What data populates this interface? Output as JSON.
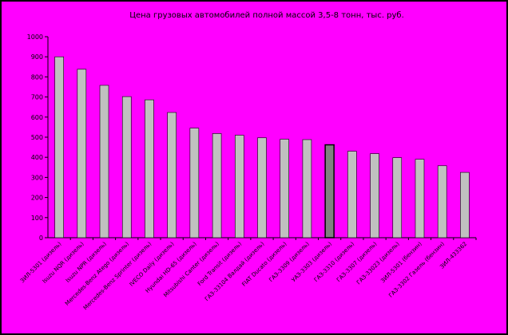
{
  "chart_data": {
    "type": "bar",
    "title": "Цена грузовых автомобилей полной массой 3,5-8 тонн, тыс. руб.",
    "xlabel": "",
    "ylabel": "",
    "ylim": [
      0,
      1000
    ],
    "yticks": [
      0,
      100,
      200,
      300,
      400,
      500,
      600,
      700,
      800,
      900,
      1000
    ],
    "grid": false,
    "legend": "none",
    "categories": [
      "ЗИЛ-5301 (дизель)",
      "Isuzu NQR (дизель)",
      "Isuzu NPR (дизель)",
      "Mercedes-Benz Atego (дизель)",
      "Mercedes-Benz Sprinter (дизель)",
      "IVECO Daily (дизель)",
      "Hyundai HD-65 (дизель)",
      "Mitsubishi Canter (дизель)",
      "Ford Transit (дизель)",
      "ГАЗ-33104 Валдай (дизель)",
      "FIAT Ducato (дизель)",
      "ГАЗ-3309 (дизель)",
      "УАЗ-3303 (дизель)",
      "ГАЗ-3310 (дизель)",
      "ГАЗ-3307 (дизель)",
      "ГАЗ-33023 (дизель)",
      "ЗИЛ-5301 (бензин)",
      "ГАЗ-3302 Газель (бензин)",
      "ЗИЛ-433362"
    ],
    "values": [
      900,
      838,
      758,
      702,
      686,
      623,
      545,
      518,
      510,
      497,
      490,
      488,
      462,
      430,
      418,
      398,
      390,
      358,
      325
    ],
    "highlight_index": 12,
    "colors": {
      "background": "#ff00ff",
      "bar": "#c0c0c0",
      "highlight_bar": "#808080",
      "axis": "#000000"
    }
  }
}
